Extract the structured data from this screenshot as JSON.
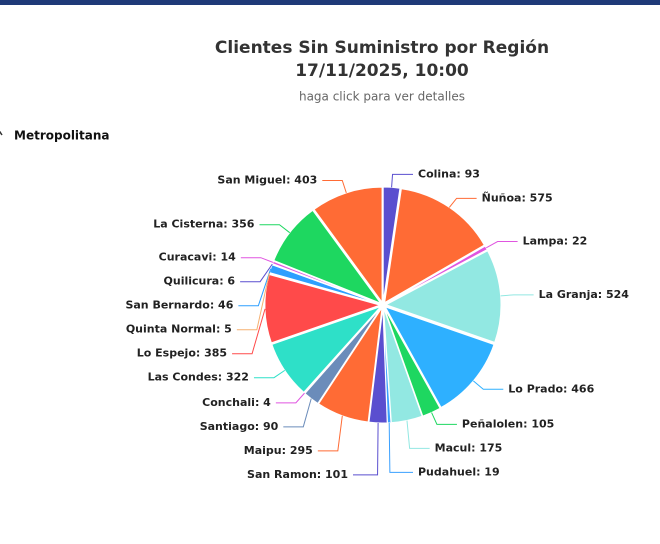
{
  "chart_data": {
    "type": "pie",
    "title": "Clientes Sin Suministro por Región",
    "date": "17/11/2025, 10:00",
    "subtitle": "haga click para ver detalles",
    "region": "Metropolitana",
    "categories": [
      "Colina",
      "Ñuñoa",
      "Lampa",
      "La Granja",
      "Lo Prado",
      "Peñalolen",
      "Macul",
      "Pudahuel",
      "San Ramon",
      "Maipu",
      "Santiago",
      "Conchali",
      "Las Condes",
      "Lo Espejo",
      "Quinta Normal",
      "San Bernardo",
      "Quilicura",
      "Curacavi",
      "La Cisterna",
      "San Miguel"
    ],
    "values": [
      93,
      575,
      22,
      524,
      466,
      105,
      175,
      19,
      101,
      295,
      90,
      4,
      322,
      385,
      5,
      46,
      6,
      14,
      356,
      403
    ],
    "value_labels": [
      "Colina: 93",
      "Ñuñoa: 575",
      "Lampa: 22",
      "La Granja: 524",
      "Lo Prado: 466",
      "Peñalolen: 105",
      "Macul: 175",
      "Pudahuel: 19",
      "San Ramon: 101",
      "Maipu: 295",
      "Santiago: 90",
      "Conchali: 4",
      "Las Condes: 322",
      "Lo Espejo: 385",
      "Quinta Normal: 5",
      "San Bernardo: 46",
      "Quilicura: 6",
      "Curacavi: 14",
      "La Cisterna: 356",
      "San Miguel: 403"
    ],
    "colors": [
      "#5a4fcf",
      "#ff6b35",
      "#e055e0",
      "#92e8e2",
      "#2eb0ff",
      "#1ed760",
      "#92e8e2",
      "#3aa0ff",
      "#5a4fcf",
      "#ff6b35",
      "#6b8cba",
      "#e055e0",
      "#2ee0c8",
      "#ff4a4a",
      "#f5b070",
      "#2e9fff",
      "#5a4fcf",
      "#e055e0",
      "#1ed760",
      "#ff6b35"
    ]
  }
}
